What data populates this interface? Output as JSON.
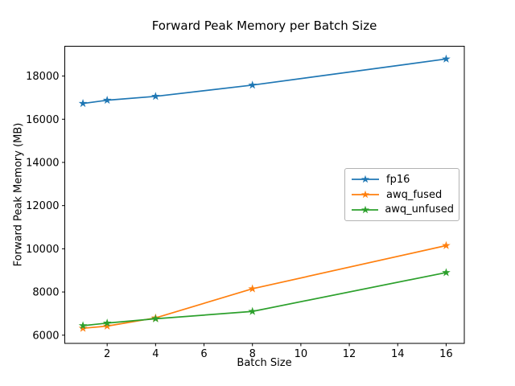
{
  "chart_data": {
    "type": "line",
    "title": "Forward Peak Memory per Batch Size",
    "xlabel": "Batch Size",
    "ylabel": "Forward Peak Memory (MB)",
    "x": [
      1,
      2,
      4,
      8,
      16
    ],
    "series": [
      {
        "name": "fp16",
        "color": "#1f77b4",
        "marker": "star",
        "values": [
          16730,
          16880,
          17060,
          17580,
          18790
        ]
      },
      {
        "name": "awq_fused",
        "color": "#ff7f0e",
        "marker": "star",
        "values": [
          6320,
          6420,
          6800,
          8150,
          10150
        ]
      },
      {
        "name": "awq_unfused",
        "color": "#2ca02c",
        "marker": "star",
        "values": [
          6440,
          6560,
          6760,
          7100,
          8900
        ]
      }
    ],
    "xlim": [
      0.25,
      16.75
    ],
    "ylim": [
      5620,
      19380
    ],
    "xticks": [
      2,
      4,
      6,
      8,
      10,
      12,
      14,
      16
    ],
    "yticks": [
      6000,
      8000,
      10000,
      12000,
      14000,
      16000,
      18000
    ],
    "grid": false,
    "legend_position": "center-right",
    "axis_color": "#000000",
    "background": "#ffffff"
  }
}
